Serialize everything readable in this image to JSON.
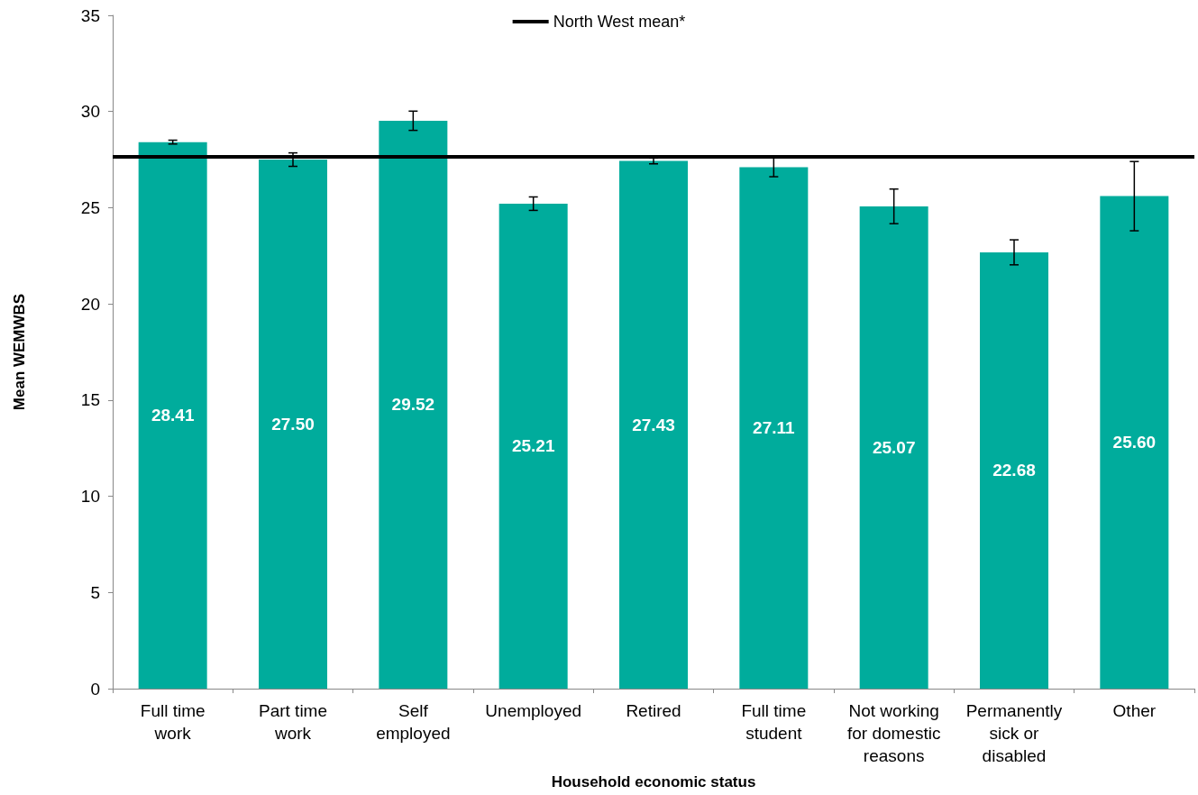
{
  "chart_data": {
    "type": "bar",
    "xlabel": "Household economic status",
    "ylabel": "Mean WEMWBS",
    "categories": [
      "Full time work",
      "Part time work",
      "Self employed",
      "Unemployed",
      "Retired",
      "Full time student",
      "Not working for domestic reasons",
      "Permanently sick or disabled",
      "Other"
    ],
    "values": [
      28.41,
      27.5,
      29.52,
      25.21,
      27.43,
      27.11,
      25.07,
      22.68,
      25.6
    ],
    "value_labels": [
      "28.41",
      "27.50",
      "29.52",
      "25.21",
      "27.43",
      "27.11",
      "25.07",
      "22.68",
      "25.60"
    ],
    "errors": [
      0.1,
      0.35,
      0.5,
      0.35,
      0.15,
      0.5,
      0.9,
      0.65,
      1.8
    ],
    "color": "#00ac9c",
    "ylim": [
      0,
      35
    ],
    "yticks": [
      0,
      5,
      10,
      15,
      20,
      25,
      30,
      35
    ],
    "grid": false,
    "legend": "top",
    "ref_lines": [
      {
        "axis": "y",
        "value": 27.65,
        "label": "North West mean*",
        "color": "#000000",
        "line_style": "solid"
      }
    ]
  }
}
